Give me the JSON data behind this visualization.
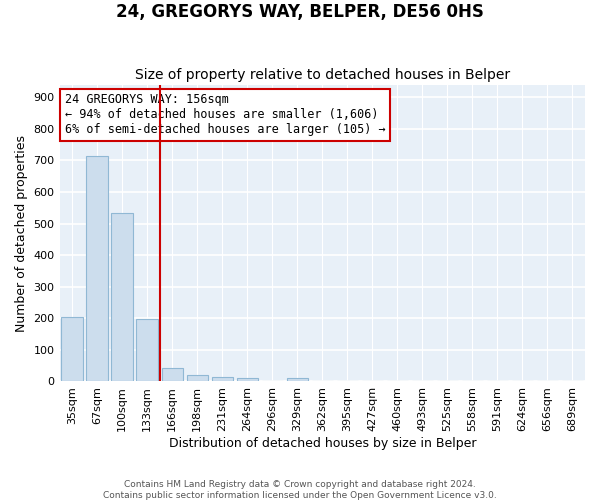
{
  "title": "24, GREGORYS WAY, BELPER, DE56 0HS",
  "subtitle": "Size of property relative to detached houses in Belper",
  "xlabel": "Distribution of detached houses by size in Belper",
  "ylabel": "Number of detached properties",
  "bar_labels": [
    "35sqm",
    "67sqm",
    "100sqm",
    "133sqm",
    "166sqm",
    "198sqm",
    "231sqm",
    "264sqm",
    "296sqm",
    "329sqm",
    "362sqm",
    "395sqm",
    "427sqm",
    "460sqm",
    "493sqm",
    "525sqm",
    "558sqm",
    "591sqm",
    "624sqm",
    "656sqm",
    "689sqm"
  ],
  "bar_values": [
    203,
    714,
    534,
    197,
    44,
    19,
    15,
    12,
    0,
    10,
    0,
    0,
    0,
    0,
    0,
    0,
    0,
    0,
    0,
    0,
    0
  ],
  "bar_color": "#ccdded",
  "bar_edge_color": "#90b8d4",
  "vline_index": 3.5,
  "vline_color": "#cc0000",
  "annotation_text": "24 GREGORYS WAY: 156sqm\n← 94% of detached houses are smaller (1,606)\n6% of semi-detached houses are larger (105) →",
  "annotation_box_color": "#ffffff",
  "annotation_box_edge": "#cc0000",
  "ylim": [
    0,
    940
  ],
  "yticks": [
    0,
    100,
    200,
    300,
    400,
    500,
    600,
    700,
    800,
    900
  ],
  "footer": "Contains HM Land Registry data © Crown copyright and database right 2024.\nContains public sector information licensed under the Open Government Licence v3.0.",
  "background_color": "#ffffff",
  "plot_bg_color": "#e8f0f8",
  "grid_color": "#ffffff",
  "title_fontsize": 12,
  "subtitle_fontsize": 10
}
